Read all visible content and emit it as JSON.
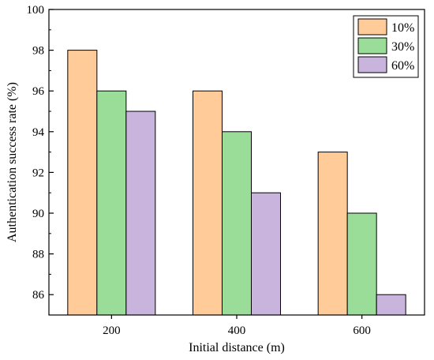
{
  "chart_data": {
    "type": "bar",
    "categories": [
      "200",
      "400",
      "600"
    ],
    "series": [
      {
        "name": "10%",
        "values": [
          98,
          96,
          93
        ],
        "color": "#FFCC99"
      },
      {
        "name": "30%",
        "values": [
          96,
          94,
          90
        ],
        "color": "#99DD99"
      },
      {
        "name": "60%",
        "values": [
          95,
          91,
          86
        ],
        "color": "#C8B4DC"
      }
    ],
    "title": "",
    "xlabel": "Initial distance (m)",
    "ylabel": "Authentication success rate (%)",
    "ylim": [
      85,
      100
    ],
    "yticks": [
      "86",
      "88",
      "90",
      "92",
      "94",
      "96",
      "98",
      "100"
    ],
    "grid": false,
    "legend_position": "top-right"
  }
}
